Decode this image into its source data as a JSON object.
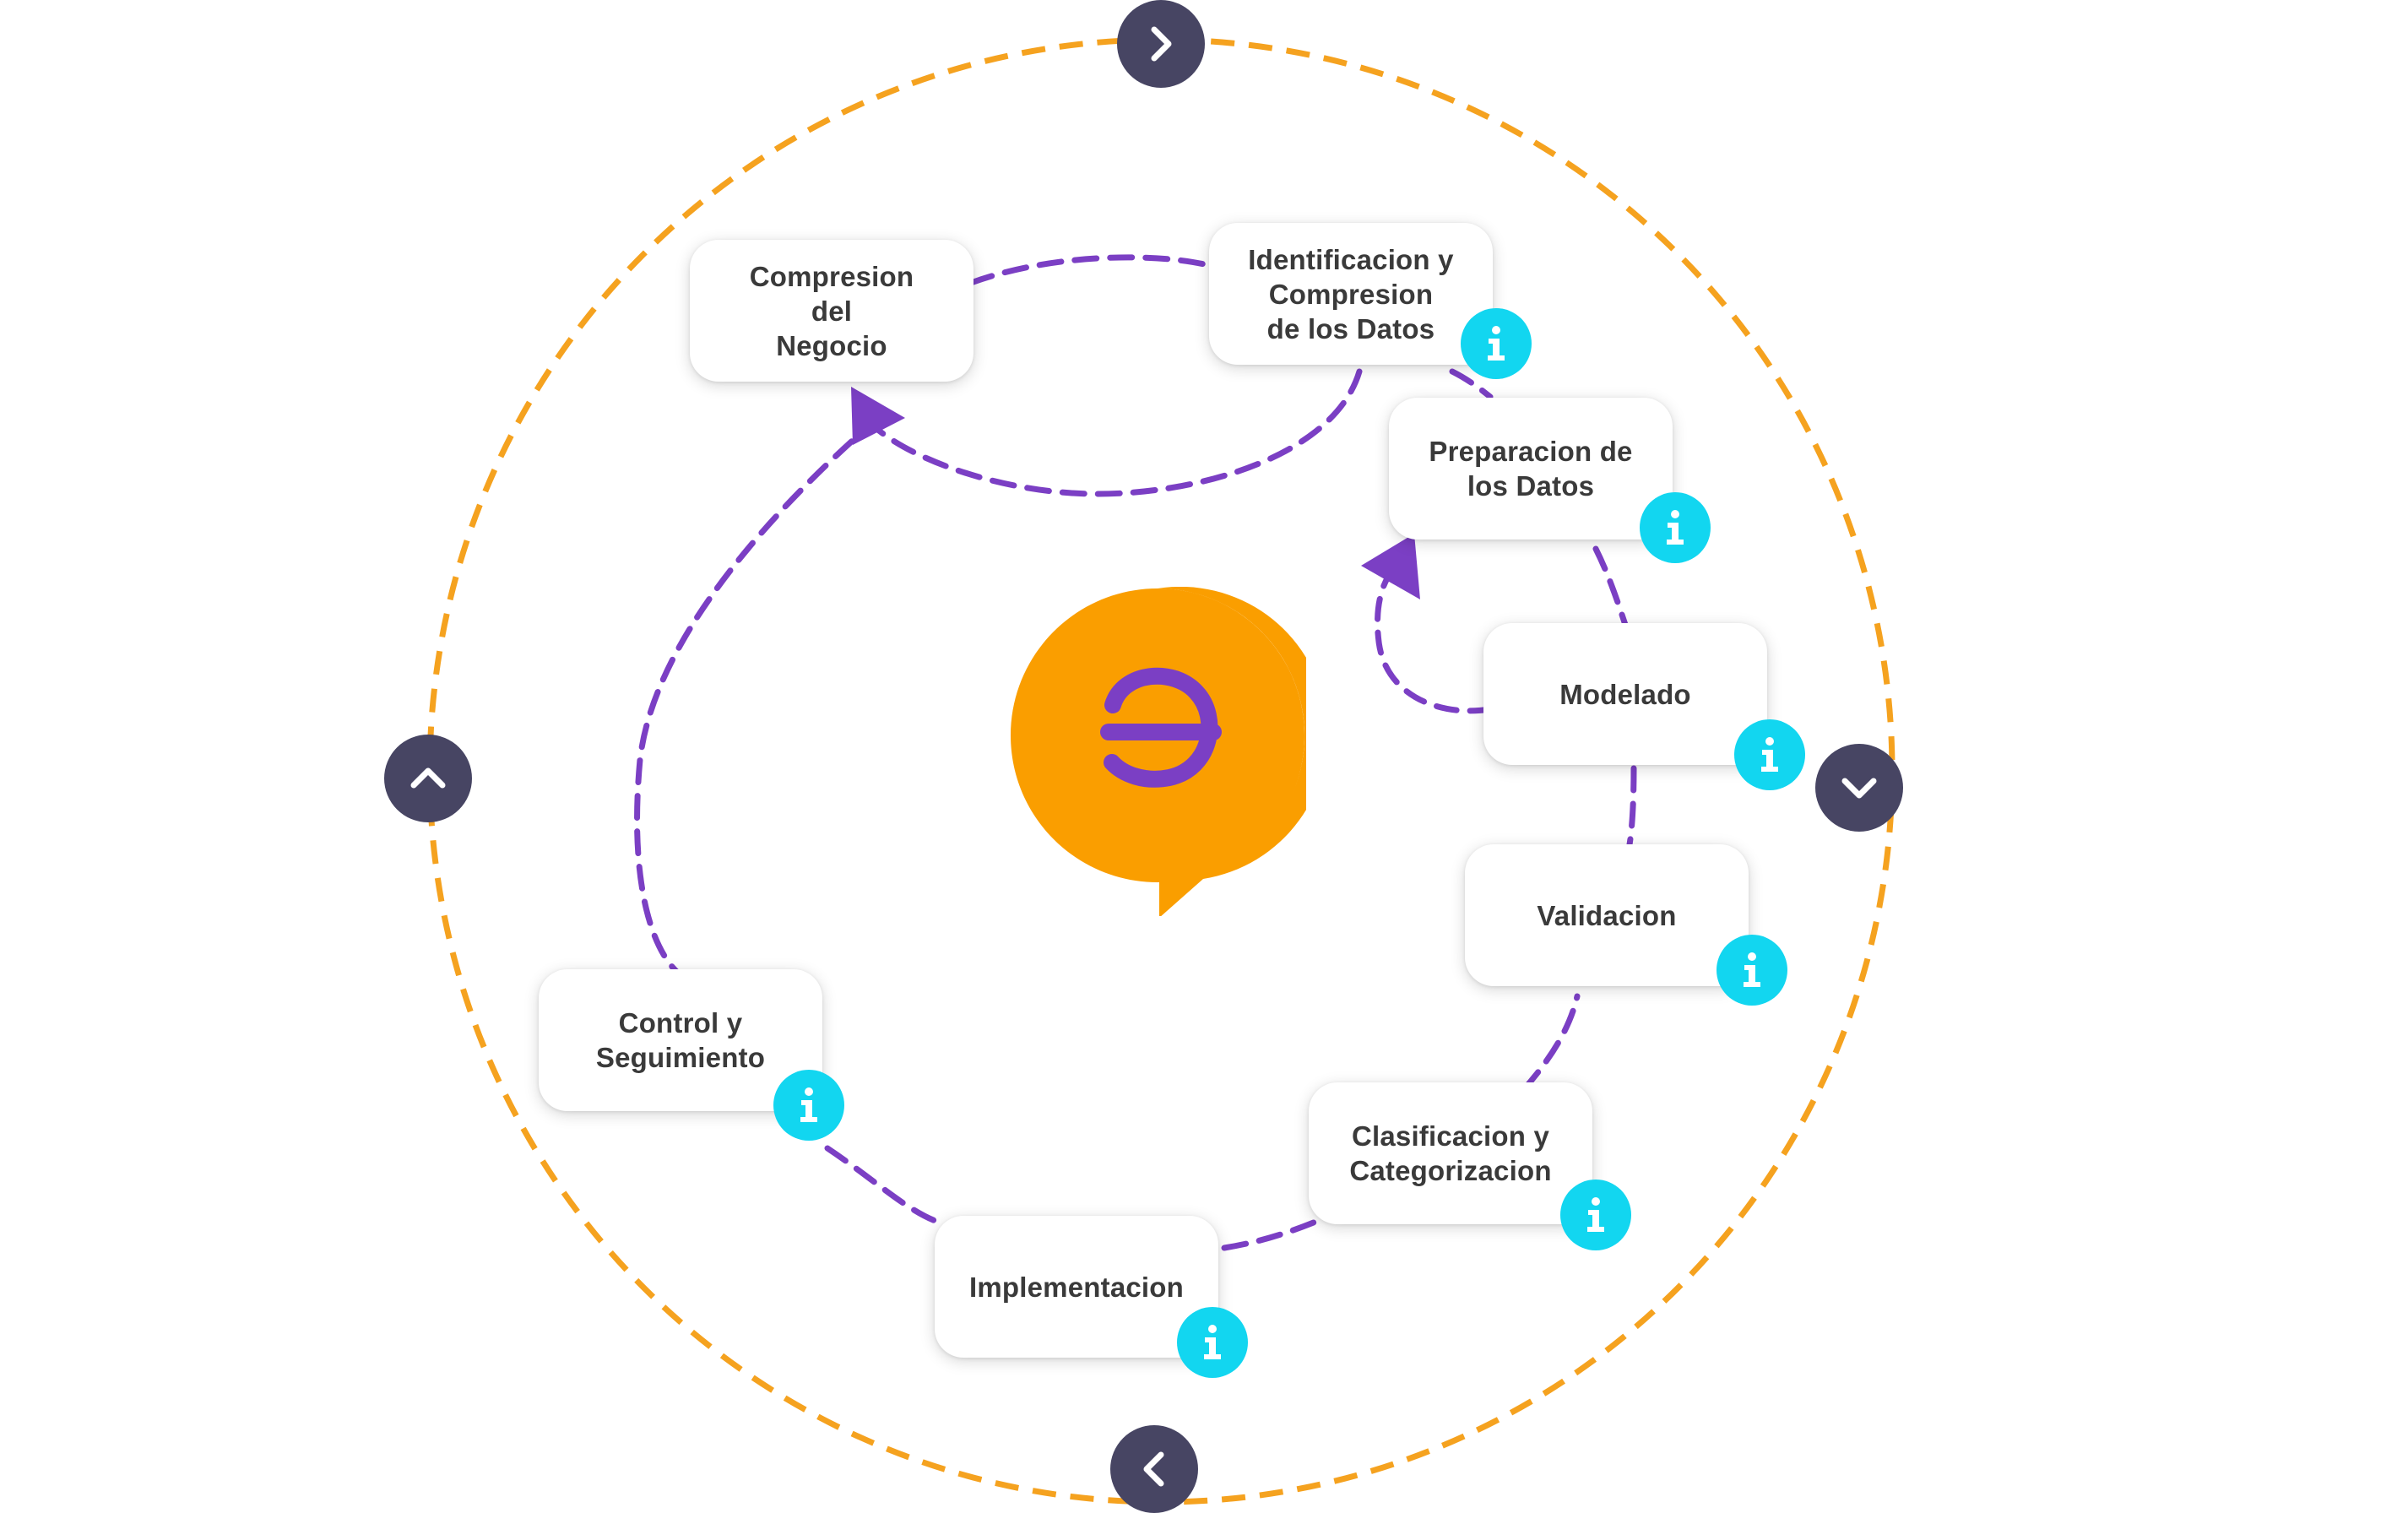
{
  "colors": {
    "outer_ring": "#f5a21f",
    "inner_path": "#7b3fc4",
    "info": "#12d6f0",
    "nav": "#474563",
    "logo_bubble": "#fa9e00",
    "logo_glyph": "#7b3fc4",
    "card_text": "#3a3a3a"
  },
  "nav": {
    "next": {
      "icon": "chevron-right-icon"
    },
    "down": {
      "icon": "chevron-down-icon"
    },
    "prev": {
      "icon": "chevron-left-icon"
    },
    "up": {
      "icon": "chevron-up-icon"
    }
  },
  "logo": {
    "icon": "speech-bubble-logo-icon"
  },
  "steps": [
    {
      "label": "Compresion\ndel\nNegocio",
      "has_info": false
    },
    {
      "label": "Identificacion y\nCompresion\nde los Datos",
      "has_info": true
    },
    {
      "label": "Preparacion de\nlos Datos",
      "has_info": true
    },
    {
      "label": "Modelado",
      "has_info": true
    },
    {
      "label": "Validacion",
      "has_info": true
    },
    {
      "label": "Clasificacion y\nCategorizacion",
      "has_info": true
    },
    {
      "label": "Implementacion",
      "has_info": true
    },
    {
      "label": "Control y\nSeguimiento",
      "has_info": true
    }
  ]
}
